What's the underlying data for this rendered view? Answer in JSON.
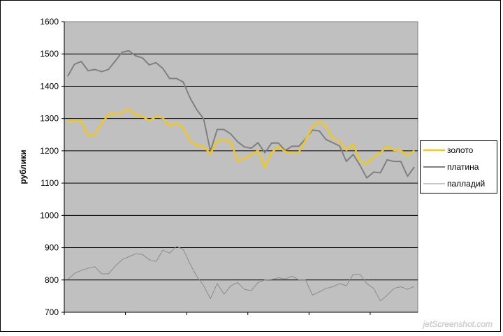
{
  "chart_data": {
    "type": "line",
    "title": "",
    "xlabel": "",
    "ylabel": "рублики",
    "ylim": [
      700,
      1600
    ],
    "yticks": [
      700,
      800,
      900,
      1000,
      1100,
      1200,
      1300,
      1400,
      1500,
      1600
    ],
    "grid": true,
    "legend_position": "right",
    "plot_background": "#c0c0c0",
    "series": [
      {
        "name": "золото",
        "color": "#f0c820",
        "values": [
          1291,
          1293,
          1293,
          1246,
          1250,
          1284,
          1313,
          1314,
          1318,
          1329,
          1311,
          1307,
          1293,
          1306,
          1302,
          1277,
          1286,
          1270,
          1233,
          1215,
          1214,
          1190,
          1231,
          1233,
          1228,
          1168,
          1176,
          1187,
          1201,
          1148,
          1194,
          1213,
          1197,
          1195,
          1195,
          1233,
          1273,
          1291,
          1277,
          1237,
          1230,
          1202,
          1220,
          1170,
          1158,
          1179,
          1194,
          1214,
          1202,
          1201,
          1184,
          1201
        ]
      },
      {
        "name": "платина",
        "color": "#808080",
        "values": [
          1431,
          1468,
          1477,
          1448,
          1452,
          1445,
          1452,
          1478,
          1505,
          1510,
          1494,
          1488,
          1466,
          1473,
          1455,
          1424,
          1424,
          1413,
          1364,
          1327,
          1299,
          1199,
          1266,
          1266,
          1252,
          1228,
          1212,
          1208,
          1225,
          1194,
          1224,
          1224,
          1201,
          1214,
          1214,
          1237,
          1264,
          1262,
          1235,
          1225,
          1215,
          1167,
          1189,
          1155,
          1116,
          1134,
          1132,
          1172,
          1167,
          1167,
          1121,
          1150
        ]
      },
      {
        "name": "палладий",
        "color": "#8c8c8c",
        "values": [
          801,
          820,
          830,
          836,
          841,
          819,
          819,
          843,
          863,
          872,
          881,
          879,
          863,
          857,
          892,
          883,
          904,
          895,
          850,
          811,
          782,
          742,
          789,
          756,
          782,
          792,
          771,
          767,
          792,
          800,
          801,
          807,
          803,
          812,
          800,
          800,
          753,
          763,
          774,
          779,
          789,
          782,
          818,
          818,
          789,
          774,
          735,
          753,
          774,
          779,
          771,
          780
        ]
      }
    ]
  },
  "watermark": "jetScreenshot.com"
}
